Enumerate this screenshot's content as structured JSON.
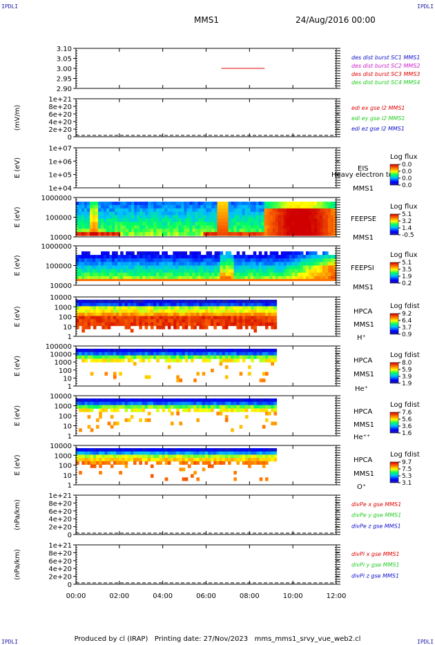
{
  "corner_label": "IPDLI",
  "header": {
    "title": "MMS1",
    "date": "24/Aug/2016 00:00"
  },
  "footer": {
    "produced_by": "Produced by cl (IRAP)",
    "printing_date": "Printing date: 27/Nov/2023",
    "script": "mms_mms1_srvy_vue_web2.cl"
  },
  "colors": {
    "red": "#e00000",
    "green": "#22cc22",
    "blue": "#1010cc",
    "magenta": "#cc22cc"
  },
  "x_ticks": [
    "00:00",
    "02:00",
    "04:00",
    "06:00",
    "08:00",
    "10:00",
    "12:00"
  ],
  "panels": [
    {
      "id": "burst",
      "yticks": [
        "3.10",
        "3.05",
        "3.00",
        "2.95",
        "2.90"
      ],
      "ylabel": "",
      "legend": [
        {
          "text": "des dist burst SC1 MMS1",
          "color": "blue"
        },
        {
          "text": "des dist burst SC2 MMS2",
          "color": "magenta"
        },
        {
          "text": "des dist burst SC3 MMS3",
          "color": "red"
        },
        {
          "text": "des dist burst SC4 MMS4",
          "color": "green"
        }
      ]
    },
    {
      "id": "edi",
      "yticks": [
        "1e+21",
        "8e+20",
        "6e+20",
        "4e+20",
        "2e+20",
        "0"
      ],
      "ylabel": "(mV/m)",
      "legend": [
        {
          "text": "edi ex gse l2 MMS1",
          "color": "red"
        },
        {
          "text": "edi ey gse l2 MMS1",
          "color": "green"
        },
        {
          "text": "edi ez gse l2 MMS1",
          "color": "blue"
        }
      ]
    },
    {
      "id": "eis",
      "yticks": [
        "1e+07",
        "1e+06",
        "1e+05",
        "1e+04"
      ],
      "ylabel": "E (eV)",
      "labels": [
        "EIS",
        "Heavy electron to",
        "MMS1"
      ],
      "cbar_title": "Log flux",
      "cbar_ticks": [
        "0.0",
        "0.0",
        "0.0",
        "0.0"
      ]
    },
    {
      "id": "feepse",
      "yticks": [
        "1000000",
        "100000",
        "10000"
      ],
      "ylabel": "E (eV)",
      "labels": [
        "FEEPSE",
        "MMS1"
      ],
      "cbar_title": "Log flux",
      "cbar_ticks": [
        "5.1",
        "3.2",
        "1.4",
        "-0.5"
      ]
    },
    {
      "id": "feepsi",
      "yticks": [
        "1000000",
        "100000",
        "10000"
      ],
      "ylabel": "E (eV)",
      "labels": [
        "FEEPSI",
        "MMS1"
      ],
      "cbar_title": "Log flux",
      "cbar_ticks": [
        "5.1",
        "3.5",
        "1.9",
        "0.2"
      ]
    },
    {
      "id": "hpca_h",
      "yticks": [
        "10000",
        "1000",
        "100",
        "10",
        "1"
      ],
      "ylabel": "E (eV)",
      "labels": [
        "HPCA",
        "MMS1",
        "H⁺"
      ],
      "cbar_title": "Log fdist",
      "cbar_ticks": [
        "9.2",
        "6.4",
        "3.7",
        "0.9"
      ]
    },
    {
      "id": "hpca_he",
      "yticks": [
        "100000",
        "10000",
        "1000",
        "100",
        "10",
        "1"
      ],
      "ylabel": "E (eV)",
      "labels": [
        "HPCA",
        "MMS1",
        "He⁺"
      ],
      "cbar_title": "Log fdist",
      "cbar_ticks": [
        "8.0",
        "5.9",
        "3.9",
        "1.9"
      ]
    },
    {
      "id": "hpca_hepp",
      "yticks": [
        "10000",
        "1000",
        "100",
        "10",
        "1"
      ],
      "ylabel": "E (eV)",
      "labels": [
        "HPCA",
        "MMS1",
        "He⁺⁺"
      ],
      "cbar_title": "Log fdist",
      "cbar_ticks": [
        "7.6",
        "5.6",
        "3.6",
        "1.6"
      ]
    },
    {
      "id": "hpca_o",
      "yticks": [
        "10000",
        "1000",
        "100",
        "10",
        "1"
      ],
      "ylabel": "E (eV)",
      "labels": [
        "HPCA",
        "MMS1",
        "O⁺"
      ],
      "cbar_title": "Log fdist",
      "cbar_ticks": [
        "9.7",
        "7.5",
        "5.3",
        "3.1"
      ]
    },
    {
      "id": "divpe",
      "yticks": [
        "1e+21",
        "8e+20",
        "6e+20",
        "4e+20",
        "2e+20",
        "0"
      ],
      "ylabel": "(nPa/km)",
      "legend": [
        {
          "text": "divPe x gse MMS1",
          "color": "red"
        },
        {
          "text": "divPe y gse MMS1",
          "color": "green"
        },
        {
          "text": "divPe z gse MMS1",
          "color": "blue"
        }
      ]
    },
    {
      "id": "divpi",
      "yticks": [
        "1e+21",
        "8e+20",
        "6e+20",
        "4e+20",
        "2e+20",
        "0"
      ],
      "ylabel": "(nPa/km)",
      "legend": [
        {
          "text": "divPi x gse MMS1",
          "color": "red"
        },
        {
          "text": "divPi y gse MMS1",
          "color": "green"
        },
        {
          "text": "divPi z gse MMS1",
          "color": "blue"
        }
      ]
    }
  ],
  "chart_data": {
    "type": "heatmap",
    "x_unit": "hours",
    "xlim": [
      0,
      12
    ],
    "burst_segment": {
      "y": 3.0,
      "x": [
        6.7,
        8.7
      ]
    },
    "spectrogram_coverage": {
      "feepse_hours": [
        0,
        12
      ],
      "feepsi_hours": [
        0,
        12
      ],
      "hpca_hours": [
        0,
        9.25
      ]
    }
  }
}
